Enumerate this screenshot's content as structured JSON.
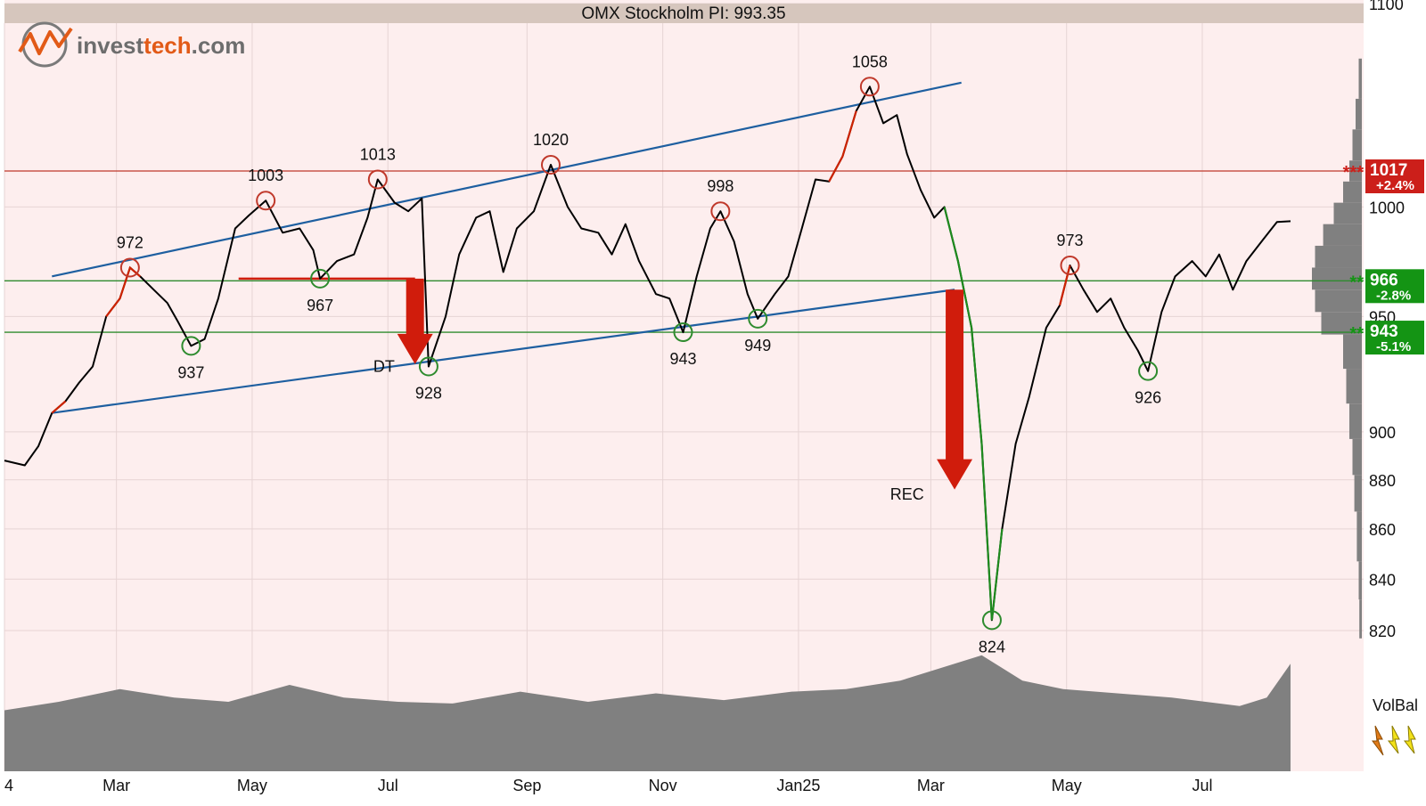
{
  "header": {
    "title": "OMX Stockholm PI: 993.35",
    "logo_text_a": "invest",
    "logo_text_b": "tech",
    "logo_text_c": ".com"
  },
  "colors": {
    "plot_bg": "#fdeeee",
    "title_bar": "#d6c6bd",
    "price": "#000000",
    "price_up": "#cc2200",
    "price_down": "#1e8a1e",
    "channel": "#1e5fa0",
    "resistance": "#c0392b",
    "support": "#2e8b2e",
    "volume": "#808080",
    "arrow": "#d01c0c"
  },
  "chart_data": {
    "type": "line",
    "title": "OMX Stockholm PI: 993.35",
    "last_value": 993.35,
    "ylim": [
      810,
      1100
    ],
    "y_ticks": [
      820,
      840,
      860,
      880,
      900,
      950,
      1000,
      1100
    ],
    "x_ticks": [
      {
        "label": "4",
        "t": 0.0
      },
      {
        "label": "Mar",
        "t": 1.65
      },
      {
        "label": "May",
        "t": 3.65
      },
      {
        "label": "Jul",
        "t": 5.65
      },
      {
        "label": "Sep",
        "t": 7.7
      },
      {
        "label": "Nov",
        "t": 9.7
      },
      {
        "label": "Jan25",
        "t": 11.7
      },
      {
        "label": "Mar",
        "t": 13.65
      },
      {
        "label": "May",
        "t": 15.65
      },
      {
        "label": "Jul",
        "t": 17.65
      }
    ],
    "x_max_t": 18.95,
    "price_series": [
      [
        0.0,
        888
      ],
      [
        0.3,
        886
      ],
      [
        0.5,
        894
      ],
      [
        0.7,
        908
      ],
      [
        0.9,
        913
      ],
      [
        1.1,
        921
      ],
      [
        1.3,
        928
      ],
      [
        1.5,
        950
      ],
      [
        1.7,
        958
      ],
      [
        1.85,
        972
      ],
      [
        2.0,
        968
      ],
      [
        2.2,
        962
      ],
      [
        2.4,
        956
      ],
      [
        2.55,
        948
      ],
      [
        2.75,
        937
      ],
      [
        2.95,
        940
      ],
      [
        3.15,
        958
      ],
      [
        3.4,
        990
      ],
      [
        3.6,
        996
      ],
      [
        3.85,
        1003
      ],
      [
        4.1,
        988
      ],
      [
        4.35,
        990
      ],
      [
        4.55,
        980
      ],
      [
        4.65,
        967
      ],
      [
        4.9,
        975
      ],
      [
        5.15,
        978
      ],
      [
        5.35,
        995
      ],
      [
        5.5,
        1013
      ],
      [
        5.75,
        1002
      ],
      [
        5.95,
        998
      ],
      [
        6.15,
        1004
      ],
      [
        6.25,
        928
      ],
      [
        6.5,
        950
      ],
      [
        6.7,
        978
      ],
      [
        6.95,
        995
      ],
      [
        7.15,
        998
      ],
      [
        7.35,
        970
      ],
      [
        7.55,
        990
      ],
      [
        7.8,
        998
      ],
      [
        8.05,
        1020
      ],
      [
        8.3,
        1000
      ],
      [
        8.5,
        990
      ],
      [
        8.75,
        988
      ],
      [
        8.95,
        978
      ],
      [
        9.15,
        992
      ],
      [
        9.35,
        975
      ],
      [
        9.6,
        960
      ],
      [
        9.8,
        958
      ],
      [
        10.0,
        943
      ],
      [
        10.2,
        968
      ],
      [
        10.4,
        990
      ],
      [
        10.55,
        998
      ],
      [
        10.75,
        984
      ],
      [
        10.95,
        960
      ],
      [
        11.1,
        949
      ],
      [
        11.35,
        960
      ],
      [
        11.55,
        968
      ],
      [
        11.75,
        990
      ],
      [
        11.95,
        1013
      ],
      [
        12.15,
        1012
      ],
      [
        12.35,
        1024
      ],
      [
        12.55,
        1046
      ],
      [
        12.75,
        1058
      ],
      [
        12.95,
        1040
      ],
      [
        13.15,
        1044
      ],
      [
        13.3,
        1025
      ],
      [
        13.5,
        1008
      ],
      [
        13.7,
        995
      ],
      [
        13.85,
        1000
      ],
      [
        14.05,
        975
      ],
      [
        14.25,
        945
      ],
      [
        14.4,
        895
      ],
      [
        14.55,
        824
      ],
      [
        14.7,
        860
      ],
      [
        14.9,
        895
      ],
      [
        15.1,
        915
      ],
      [
        15.35,
        945
      ],
      [
        15.55,
        955
      ],
      [
        15.7,
        973
      ],
      [
        15.9,
        962
      ],
      [
        16.1,
        952
      ],
      [
        16.3,
        958
      ],
      [
        16.5,
        945
      ],
      [
        16.7,
        935
      ],
      [
        16.85,
        926
      ],
      [
        17.05,
        952
      ],
      [
        17.25,
        968
      ],
      [
        17.5,
        975
      ],
      [
        17.7,
        968
      ],
      [
        17.9,
        978
      ],
      [
        18.1,
        962
      ],
      [
        18.3,
        975
      ],
      [
        18.55,
        985
      ],
      [
        18.75,
        993
      ],
      [
        18.95,
        993.35
      ]
    ],
    "red_segments": [
      [
        0.55,
        0.97
      ],
      [
        1.5,
        2.0
      ],
      [
        3.75,
        4.05
      ],
      [
        5.45,
        5.6
      ],
      [
        6.1,
        6.2
      ],
      [
        7.1,
        7.3
      ],
      [
        8.0,
        8.15
      ],
      [
        10.45,
        10.6
      ],
      [
        12.0,
        12.7
      ],
      [
        15.55,
        15.75
      ]
    ],
    "green_segments": [
      [
        13.85,
        14.7
      ]
    ],
    "pivots": [
      {
        "label": "972",
        "t": 1.85,
        "value": 972,
        "kind": "high"
      },
      {
        "label": "937",
        "t": 2.75,
        "value": 937,
        "kind": "low"
      },
      {
        "label": "1003",
        "t": 3.85,
        "value": 1003,
        "kind": "high"
      },
      {
        "label": "967",
        "t": 4.65,
        "value": 967,
        "kind": "low"
      },
      {
        "label": "1013",
        "t": 5.5,
        "value": 1013,
        "kind": "high"
      },
      {
        "label": "928",
        "t": 6.25,
        "value": 928,
        "kind": "low"
      },
      {
        "label": "1020",
        "t": 8.05,
        "value": 1020,
        "kind": "high"
      },
      {
        "label": "943",
        "t": 10.0,
        "value": 943,
        "kind": "low"
      },
      {
        "label": "998",
        "t": 10.55,
        "value": 998,
        "kind": "high"
      },
      {
        "label": "949",
        "t": 11.1,
        "value": 949,
        "kind": "low"
      },
      {
        "label": "1058",
        "t": 12.75,
        "value": 1058,
        "kind": "high"
      },
      {
        "label": "824",
        "t": 14.55,
        "value": 824,
        "kind": "low"
      },
      {
        "label": "973",
        "t": 15.7,
        "value": 973,
        "kind": "high"
      },
      {
        "label": "926",
        "t": 16.85,
        "value": 926,
        "kind": "low"
      }
    ],
    "channel_lines": [
      {
        "from": [
          0.7,
          968
        ],
        "to": [
          14.1,
          1060
        ]
      },
      {
        "from": [
          0.7,
          908
        ],
        "to": [
          14.0,
          962
        ]
      }
    ],
    "horizontal_levels": [
      {
        "value": 1017,
        "label": "1017",
        "pct": "+2.4%",
        "kind": "resistance",
        "stars": "***"
      },
      {
        "value": 966,
        "label": "966",
        "pct": "-2.8%",
        "kind": "support",
        "stars": "**"
      },
      {
        "value": 943,
        "label": "943",
        "pct": "-5.1%",
        "kind": "support",
        "stars": "**"
      }
    ],
    "breakout_shelf": {
      "from": [
        3.45,
        967
      ],
      "to": [
        6.05,
        967
      ]
    },
    "annotations": [
      {
        "text": "DT",
        "t": 5.75,
        "value": 928
      },
      {
        "text": "REC",
        "t": 13.55,
        "value": 874
      }
    ],
    "target_arrows": [
      {
        "t": 6.05,
        "from": 967,
        "to": 929
      },
      {
        "t": 14.0,
        "from": 962,
        "to": 876
      }
    ],
    "volume_balance": {
      "label": "VolBal",
      "profile": [
        [
          0.0,
          0.3
        ],
        [
          0.8,
          0.4
        ],
        [
          1.7,
          0.55
        ],
        [
          2.5,
          0.45
        ],
        [
          3.3,
          0.4
        ],
        [
          4.2,
          0.6
        ],
        [
          5.0,
          0.45
        ],
        [
          5.8,
          0.4
        ],
        [
          6.6,
          0.38
        ],
        [
          7.6,
          0.52
        ],
        [
          8.6,
          0.4
        ],
        [
          9.6,
          0.5
        ],
        [
          10.6,
          0.42
        ],
        [
          11.6,
          0.52
        ],
        [
          12.4,
          0.55
        ],
        [
          13.2,
          0.65
        ],
        [
          14.4,
          0.95
        ],
        [
          15.0,
          0.65
        ],
        [
          15.6,
          0.55
        ],
        [
          16.4,
          0.5
        ],
        [
          17.2,
          0.45
        ],
        [
          18.2,
          0.35
        ],
        [
          18.6,
          0.45
        ],
        [
          18.95,
          0.85
        ]
      ]
    },
    "volume_profile": [
      [
        1065,
        0.05
      ],
      [
        1045,
        0.1
      ],
      [
        1030,
        0.15
      ],
      [
        1015,
        0.2
      ],
      [
        1005,
        0.3
      ],
      [
        995,
        0.45
      ],
      [
        985,
        0.62
      ],
      [
        975,
        0.75
      ],
      [
        965,
        0.8
      ],
      [
        955,
        0.75
      ],
      [
        945,
        0.65
      ],
      [
        935,
        0.3
      ],
      [
        920,
        0.25
      ],
      [
        905,
        0.2
      ],
      [
        890,
        0.15
      ],
      [
        875,
        0.12
      ],
      [
        860,
        0.08
      ],
      [
        840,
        0.05
      ],
      [
        825,
        0.04
      ]
    ]
  }
}
